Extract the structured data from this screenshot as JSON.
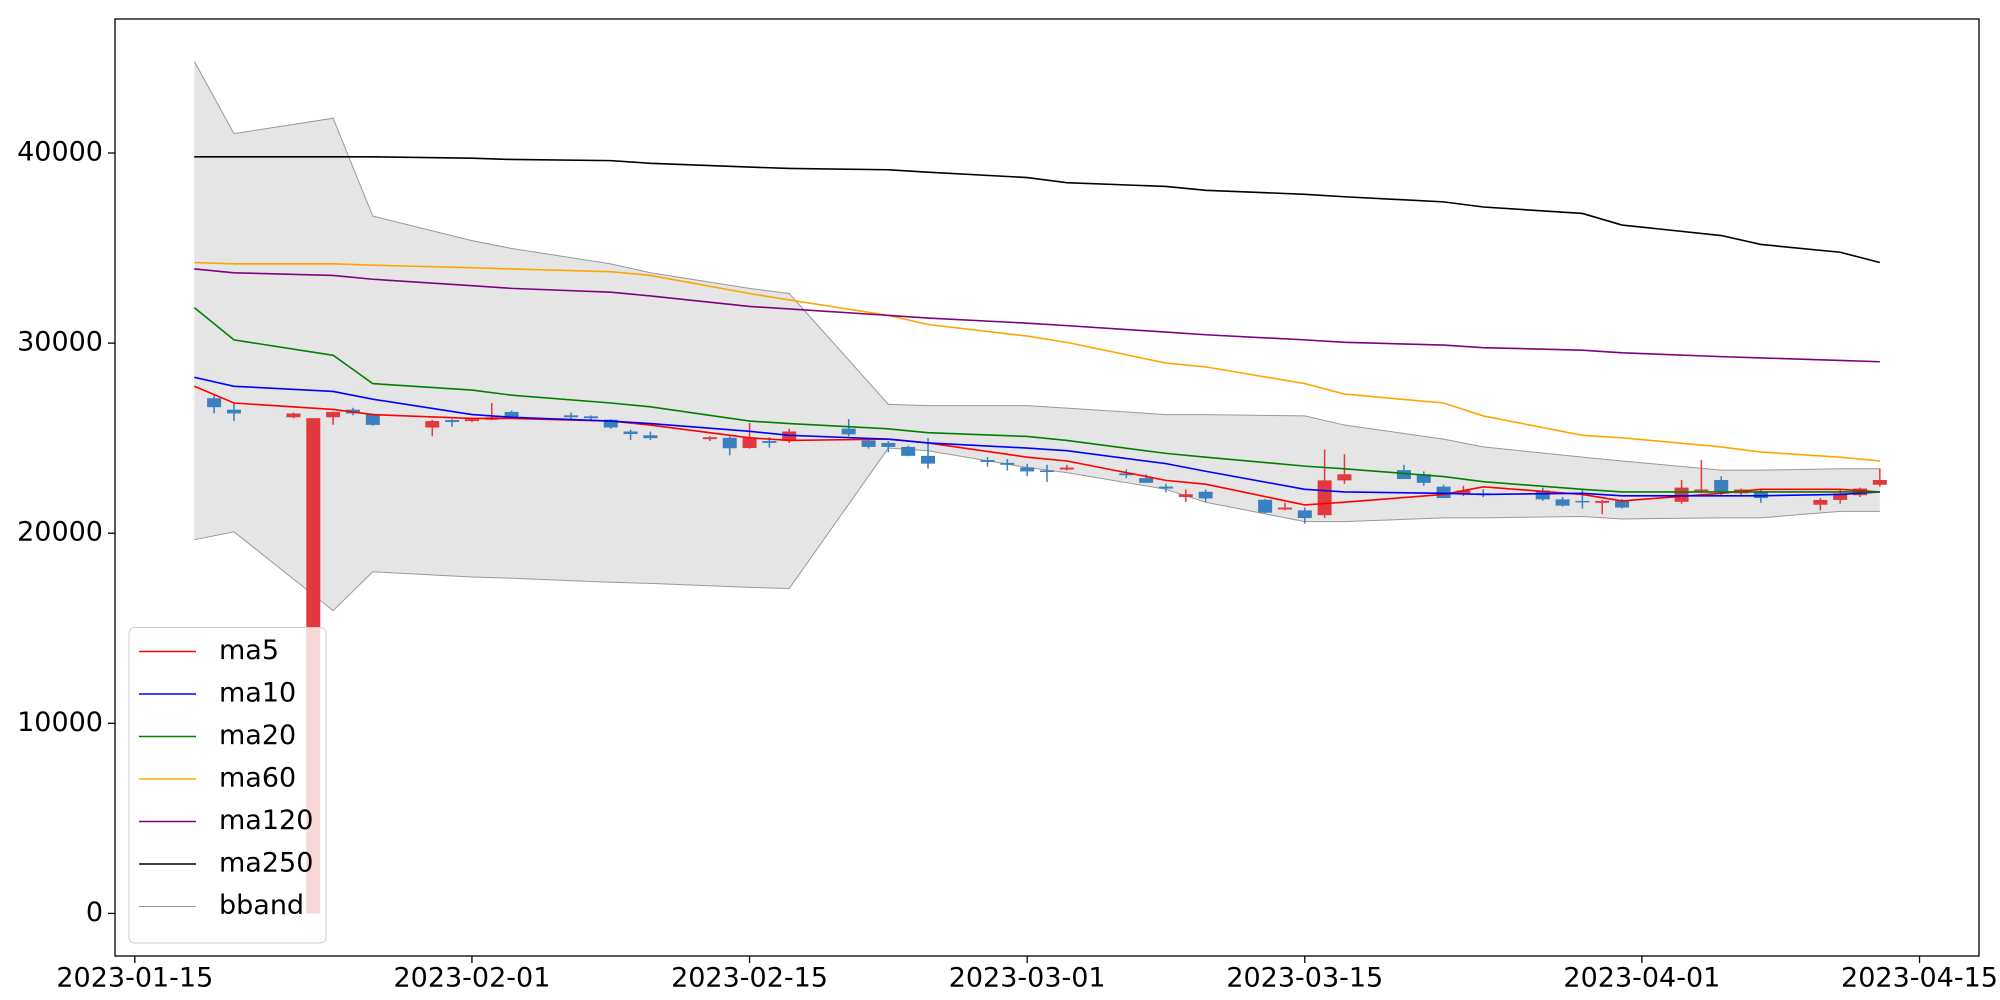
{
  "chart_data": {
    "type": "candlestick",
    "x": [
      "2023-01-19",
      "2023-01-20",
      "2023-01-23",
      "2023-01-24",
      "2023-01-25",
      "2023-01-26",
      "2023-01-27",
      "2023-01-30",
      "2023-01-31",
      "2023-02-01",
      "2023-02-02",
      "2023-02-03",
      "2023-02-06",
      "2023-02-07",
      "2023-02-08",
      "2023-02-09",
      "2023-02-10",
      "2023-02-13",
      "2023-02-14",
      "2023-02-15",
      "2023-02-16",
      "2023-02-17",
      "2023-02-20",
      "2023-02-21",
      "2023-02-22",
      "2023-02-23",
      "2023-02-24",
      "2023-02-27",
      "2023-02-28",
      "2023-03-01",
      "2023-03-02",
      "2023-03-03",
      "2023-03-06",
      "2023-03-07",
      "2023-03-08",
      "2023-03-09",
      "2023-03-10",
      "2023-03-13",
      "2023-03-14",
      "2023-03-15",
      "2023-03-16",
      "2023-03-17",
      "2023-03-20",
      "2023-03-21",
      "2023-03-22",
      "2023-03-23",
      "2023-03-24",
      "2023-03-27",
      "2023-03-28",
      "2023-03-29",
      "2023-03-30",
      "2023-03-31",
      "2023-04-03",
      "2023-04-04",
      "2023-04-05",
      "2023-04-06",
      "2023-04-07",
      "2023-04-10",
      "2023-04-11",
      "2023-04-12",
      "2023-04-13"
    ],
    "open": [
      27100,
      26500,
      26100,
      0,
      26100,
      26500,
      26250,
      25560,
      25950,
      25900,
      25970,
      26380,
      26200,
      26150,
      25970,
      25350,
      25150,
      24950,
      25020,
      24480,
      24850,
      24880,
      25500,
      24880,
      24750,
      24540,
      24070,
      23850,
      23700,
      23460,
      23300,
      23350,
      23150,
      22900,
      22450,
      21900,
      22180,
      21760,
      21250,
      21200,
      20950,
      22780,
      23320,
      23100,
      22450,
      22100,
      22100,
      22250,
      21780,
      21700,
      21600,
      21700,
      21650,
      22200,
      22800,
      22100,
      22200,
      21500,
      21750,
      22000,
      22550
    ],
    "high": [
      27250,
      26850,
      26350,
      26050,
      26400,
      26600,
      26300,
      25950,
      26000,
      26050,
      26850,
      26450,
      26350,
      26200,
      26000,
      25450,
      25350,
      25100,
      25100,
      25800,
      25050,
      25500,
      26000,
      24950,
      24850,
      24600,
      25000,
      24000,
      23900,
      23650,
      23600,
      23600,
      23350,
      23100,
      22600,
      22300,
      22300,
      21800,
      21600,
      21350,
      24400,
      24150,
      23600,
      23250,
      22550,
      22500,
      22300,
      22400,
      21900,
      22300,
      21750,
      21800,
      22800,
      23850,
      23000,
      22350,
      22350,
      21850,
      22300,
      22400,
      23400
    ],
    "low": [
      26300,
      25900,
      26050,
      0,
      25700,
      26200,
      25650,
      25100,
      25600,
      25850,
      25950,
      26050,
      26000,
      25950,
      25500,
      24900,
      24900,
      24850,
      24100,
      24450,
      24500,
      24750,
      25100,
      24450,
      24250,
      24050,
      23400,
      23500,
      23300,
      23000,
      22700,
      23300,
      22900,
      22700,
      22150,
      21650,
      21650,
      21050,
      21200,
      20500,
      20800,
      22600,
      22900,
      22500,
      21850,
      21950,
      21900,
      21700,
      21400,
      21300,
      21000,
      21300,
      21550,
      22100,
      21950,
      21950,
      21600,
      21200,
      21550,
      21900,
      22450
    ],
    "close": [
      26630,
      26300,
      26300,
      26050,
      26380,
      26300,
      25700,
      25900,
      25850,
      26000,
      26100,
      26100,
      26100,
      26050,
      25560,
      25220,
      25000,
      25050,
      24470,
      25020,
      24750,
      25350,
      25200,
      24540,
      24540,
      24070,
      23660,
      23750,
      23600,
      23250,
      23250,
      23450,
      23050,
      22650,
      22350,
      22050,
      21830,
      21080,
      21350,
      20800,
      22780,
      23100,
      22850,
      22650,
      21850,
      22250,
      22050,
      21780,
      21450,
      21650,
      21700,
      21350,
      22400,
      22300,
      22150,
      22300,
      21850,
      21750,
      22100,
      22350,
      22800
    ],
    "up_color": "#e0393e",
    "down_color": "#3a7fbf",
    "lines": {
      "x": [
        "2023-01-18",
        "2023-01-20",
        "2023-01-25",
        "2023-01-27",
        "2023-02-01",
        "2023-02-03",
        "2023-02-08",
        "2023-02-10",
        "2023-02-15",
        "2023-02-17",
        "2023-02-22",
        "2023-02-24",
        "2023-03-01",
        "2023-03-03",
        "2023-03-08",
        "2023-03-10",
        "2023-03-15",
        "2023-03-17",
        "2023-03-22",
        "2023-03-24",
        "2023-03-29",
        "2023-03-31",
        "2023-04-05",
        "2023-04-07",
        "2023-04-11",
        "2023-04-13"
      ],
      "series": [
        {
          "name": "ma5",
          "color": "#ff0000",
          "values": [
            27730,
            26850,
            26510,
            26240,
            26040,
            26040,
            25900,
            25690,
            25020,
            24880,
            24950,
            24750,
            24000,
            23800,
            22780,
            22580,
            21490,
            21630,
            22040,
            22440,
            22040,
            21700,
            22100,
            22310,
            22310,
            22170
          ]
        },
        {
          "name": "ma10",
          "color": "#0000ff",
          "values": [
            28200,
            27730,
            27460,
            27050,
            26240,
            26100,
            25900,
            25770,
            25360,
            25150,
            24950,
            24750,
            24480,
            24340,
            23660,
            23260,
            22310,
            22170,
            22100,
            22040,
            22100,
            21970,
            21970,
            21970,
            22040,
            22170
          ]
        },
        {
          "name": "ma20",
          "color": "#008000",
          "values": [
            31870,
            30170,
            29360,
            27870,
            27530,
            27260,
            26850,
            26650,
            25900,
            25770,
            25490,
            25290,
            25090,
            24880,
            24200,
            24000,
            23530,
            23390,
            22980,
            22710,
            22310,
            22170,
            22170,
            22170,
            22170,
            22170
          ]
        },
        {
          "name": "ma60",
          "color": "#ffa500",
          "values": [
            34240,
            34170,
            34170,
            34100,
            33970,
            33900,
            33760,
            33560,
            32610,
            32270,
            31460,
            30980,
            30370,
            30040,
            28950,
            28750,
            27870,
            27320,
            26850,
            26170,
            25150,
            25020,
            24540,
            24270,
            24000,
            23800
          ]
        },
        {
          "name": "ma120",
          "color": "#800080",
          "values": [
            33900,
            33700,
            33560,
            33360,
            33020,
            32880,
            32680,
            32480,
            31930,
            31800,
            31460,
            31320,
            31050,
            30920,
            30580,
            30440,
            30170,
            30040,
            29900,
            29760,
            29630,
            29490,
            29290,
            29220,
            29090,
            29020
          ]
        },
        {
          "name": "ma250",
          "color": "#000000",
          "values": [
            39800,
            39800,
            39800,
            39800,
            39730,
            39660,
            39600,
            39460,
            39260,
            39190,
            39120,
            38990,
            38710,
            38440,
            38240,
            38040,
            37830,
            37700,
            37430,
            37160,
            36820,
            36210,
            35660,
            35190,
            34780,
            34240
          ]
        }
      ]
    },
    "band": {
      "name": "bband",
      "color": "#999999",
      "fill": "#e5e5e5",
      "upper": [
        44820,
        41020,
        41830,
        36680,
        35390,
        34980,
        34170,
        33700,
        32880,
        32610,
        26780,
        26710,
        26710,
        26580,
        26240,
        26240,
        26170,
        25690,
        24950,
        24540,
        24000,
        23800,
        23320,
        23320,
        23390,
        23390
      ],
      "lower": [
        19660,
        20070,
        15930,
        17970,
        17700,
        17630,
        17420,
        17360,
        17150,
        17090,
        24480,
        24340,
        23460,
        23190,
        22310,
        21630,
        20610,
        20610,
        20810,
        20810,
        20880,
        20750,
        20810,
        20810,
        21150,
        21150
      ]
    },
    "xlim": [
      "2023-01-14",
      "2023-04-18"
    ],
    "xticks": [
      "2023-01-15",
      "2023-02-01",
      "2023-02-15",
      "2023-03-01",
      "2023-03-15",
      "2023-04-01",
      "2023-04-15"
    ],
    "ylim": [
      -2240,
      47050
    ],
    "yticks": [
      0,
      10000,
      20000,
      30000,
      40000
    ],
    "legend": "lower left"
  }
}
